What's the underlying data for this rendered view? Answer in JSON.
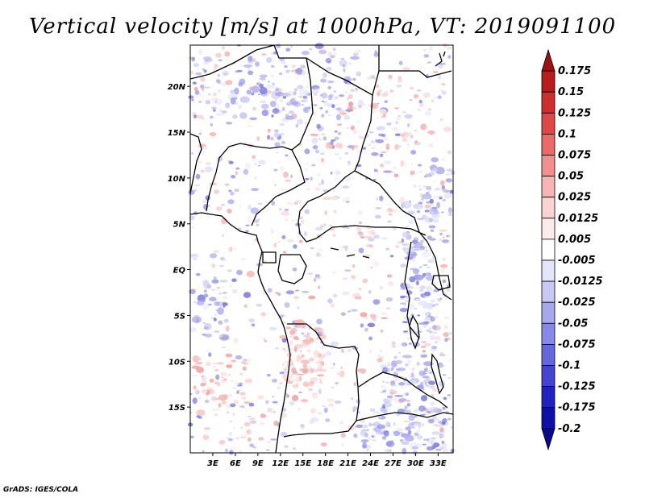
{
  "chart_data": {
    "type": "heatmap",
    "title": "Vertical velocity [m/s] at 1000hPa, VT: 2019091100",
    "x_tick_labels": [
      "3E",
      "6E",
      "9E",
      "12E",
      "15E",
      "18E",
      "21E",
      "24E",
      "27E",
      "30E",
      "33E"
    ],
    "y_tick_labels": [
      "20N",
      "15N",
      "10N",
      "5N",
      "EQ",
      "5S",
      "10S",
      "15S"
    ],
    "x_ticks": [
      3,
      6,
      9,
      12,
      15,
      18,
      21,
      24,
      27,
      30,
      33
    ],
    "y_ticks": [
      20,
      15,
      10,
      5,
      0,
      -5,
      -10,
      -15
    ],
    "xlim": [
      0,
      35
    ],
    "ylim": [
      -20,
      24.5
    ],
    "colorbar": {
      "levels": [
        "0.175",
        "0.15",
        "0.125",
        "0.1",
        "0.075",
        "0.05",
        "0.025",
        "0.0125",
        "0.005",
        "-0.005",
        "-0.0125",
        "-0.025",
        "-0.05",
        "-0.075",
        "-0.1",
        "-0.125",
        "-0.175",
        "-0.2"
      ],
      "colors": [
        "#a01010",
        "#b81c1c",
        "#cf2e2e",
        "#e04848",
        "#ea6a6a",
        "#f28e8e",
        "#f7b4b4",
        "#fbd3d3",
        "#fdeaea",
        "#ffffff",
        "#e4e4fb",
        "#c8c8f5",
        "#a8a8ee",
        "#8888e6",
        "#6666dd",
        "#4444d0",
        "#2222c0",
        "#1010a8",
        "#0a0a8c"
      ]
    }
  },
  "credit": "GrADS: IGES/COLA"
}
